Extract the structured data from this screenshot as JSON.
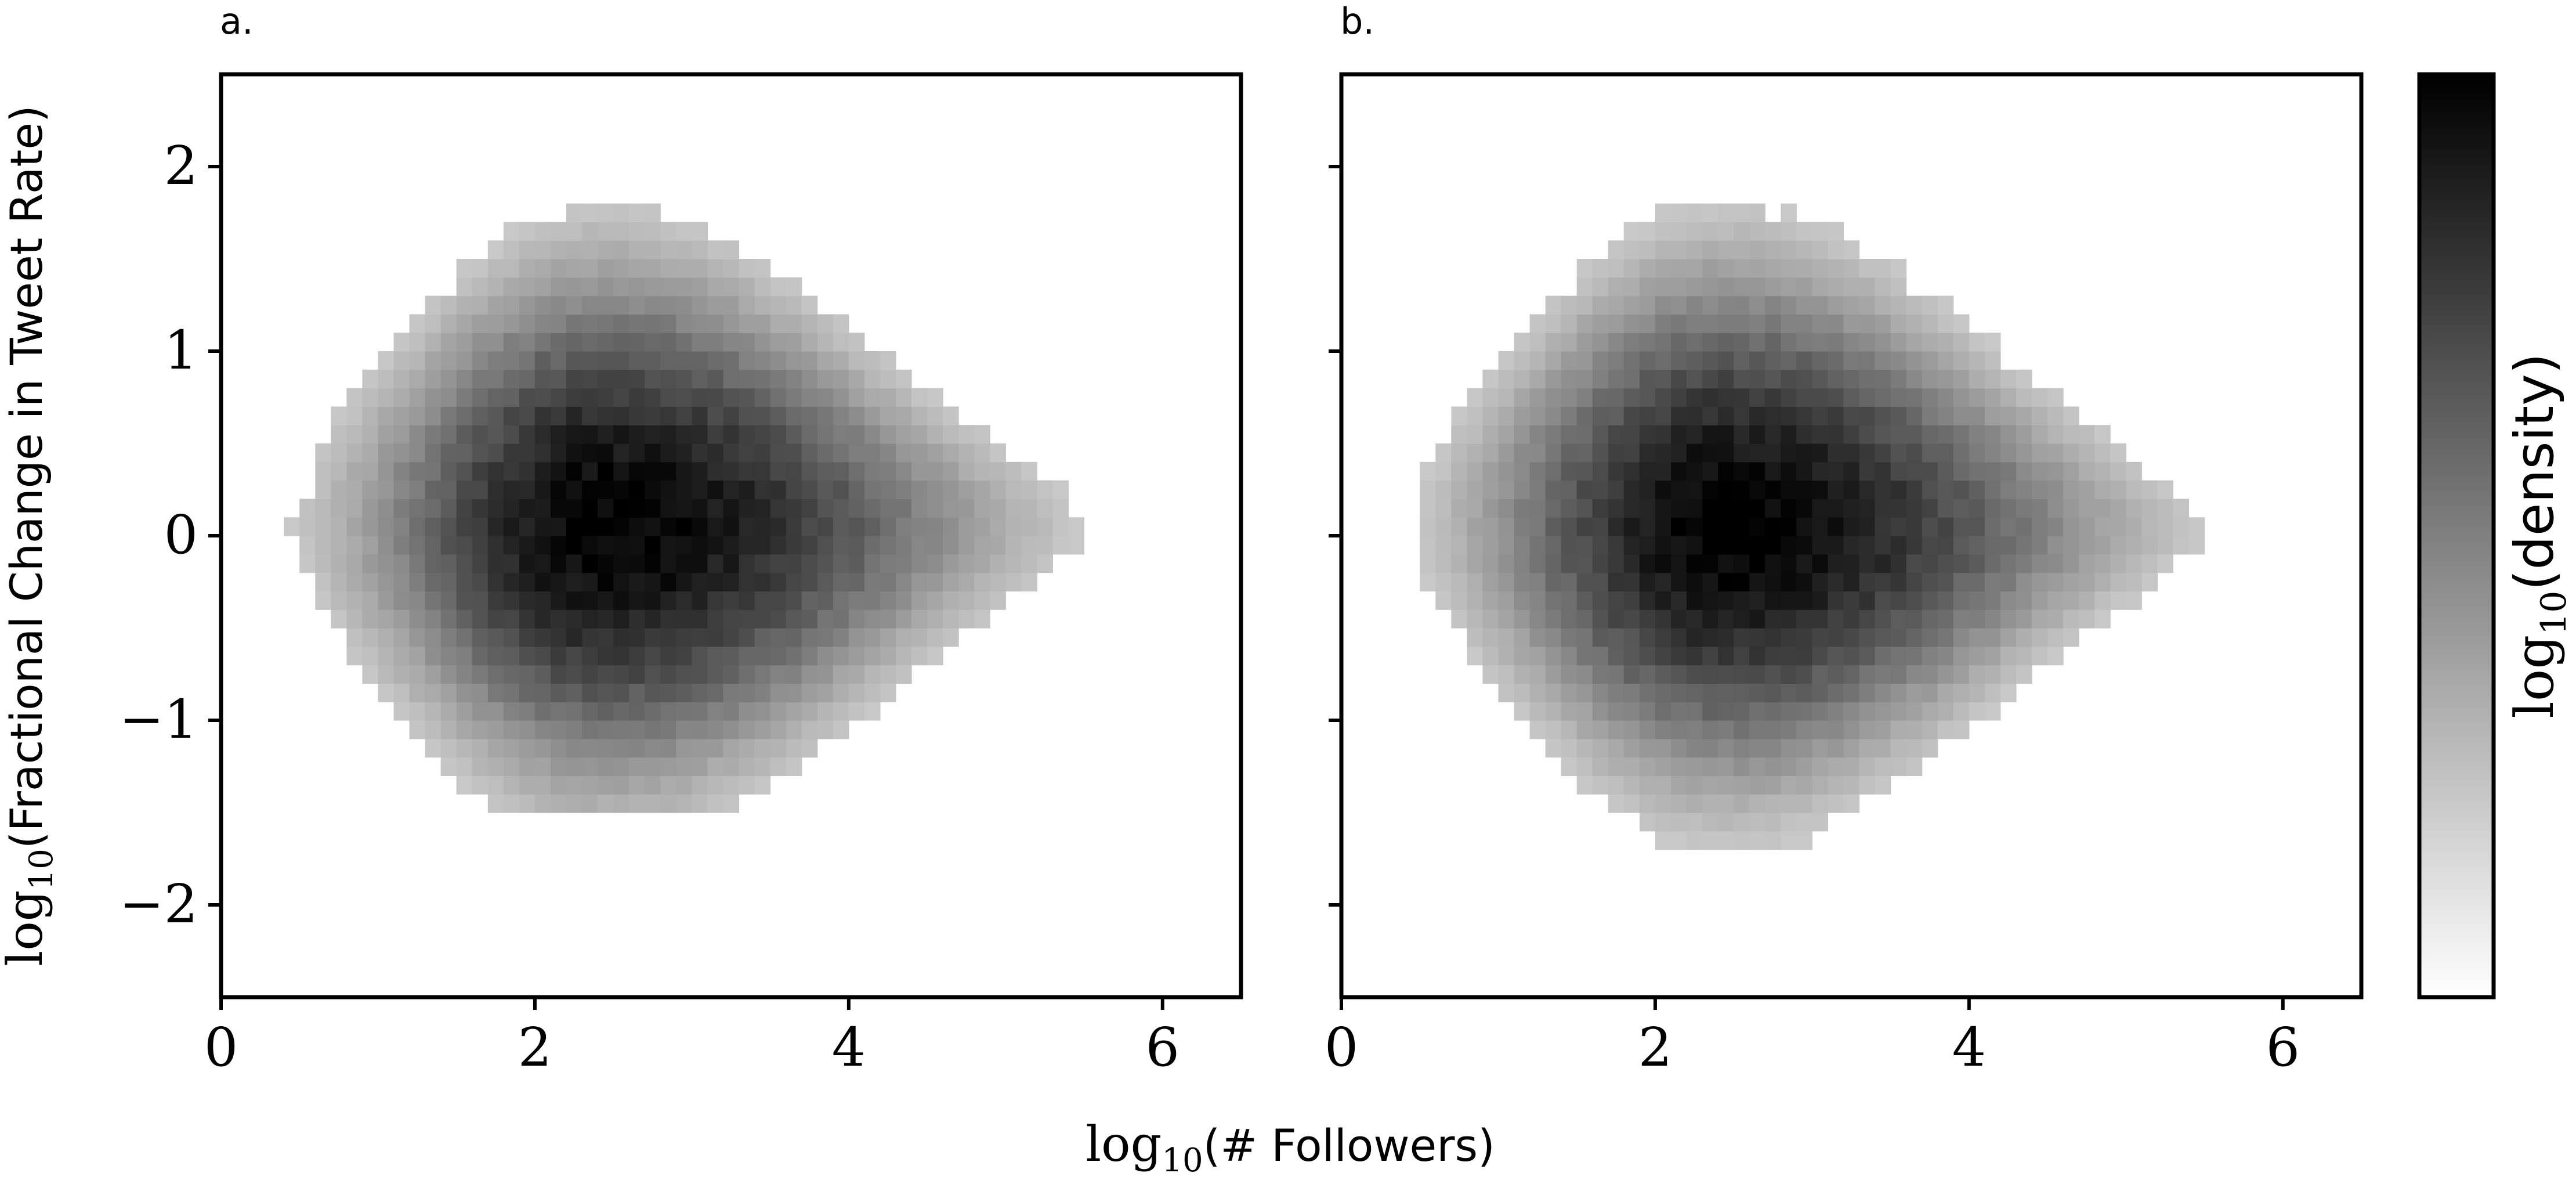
{
  "figure": {
    "xlabel_prefix": "log",
    "xlabel_sub": "10",
    "xlabel_main": "(# Followers)",
    "ylabel_prefix": "log",
    "ylabel_sub": "10",
    "ylabel_main": "(Fractional Change in Tweet Rate)",
    "colorbar_prefix": "log",
    "colorbar_sub": "10",
    "colorbar_main": "(density)"
  },
  "chart_data": [
    {
      "type": "heatmap",
      "panel_label": "a.",
      "x_range": [
        0,
        6.5
      ],
      "y_range": [
        -2.5,
        2.5
      ],
      "x_ticks": [
        0,
        2,
        4,
        6
      ],
      "y_ticks": [
        -2,
        -1,
        0,
        1,
        2
      ],
      "x_tick_labels": [
        "0",
        "2",
        "4",
        "6"
      ],
      "y_tick_labels": [
        "−2",
        "−1",
        "0",
        "1",
        "2"
      ],
      "density_center": {
        "x": 2.45,
        "y": 0.05
      },
      "x_extent": [
        0.0,
        6.0
      ],
      "y_extent": [
        -1.5,
        2.5
      ],
      "colormap": [
        "#ffffff",
        "#000000"
      ]
    },
    {
      "type": "heatmap",
      "panel_label": "b.",
      "x_range": [
        0,
        6.5
      ],
      "y_range": [
        -2.5,
        2.5
      ],
      "x_ticks": [
        0,
        2,
        4,
        6
      ],
      "y_ticks": [
        -2,
        -1,
        0,
        1,
        2
      ],
      "x_tick_labels": [
        "0",
        "2",
        "4",
        "6"
      ],
      "y_tick_labels": [],
      "density_center": {
        "x": 2.45,
        "y": 0.05
      },
      "x_extent": [
        0.0,
        6.3
      ],
      "y_extent": [
        -1.9,
        2.4
      ],
      "colormap": [
        "#ffffff",
        "#000000"
      ]
    }
  ]
}
